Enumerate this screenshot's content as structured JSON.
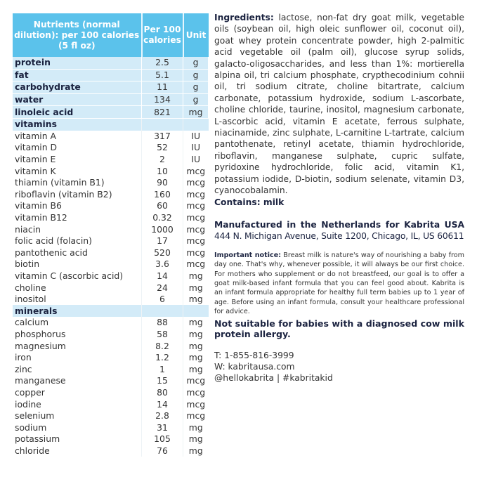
{
  "table": {
    "headers": [
      "Nutrients (normal dilution): per 100 calories (5 fl oz)",
      "Per 100 calories",
      "Unit"
    ],
    "rows": [
      {
        "type": "highlight",
        "name": "protein",
        "value": "2.5",
        "unit": "g"
      },
      {
        "type": "highlight",
        "name": "fat",
        "value": "5.1",
        "unit": "g"
      },
      {
        "type": "highlight",
        "name": "carbohydrate",
        "value": "11",
        "unit": "g"
      },
      {
        "type": "highlight",
        "name": "water",
        "value": "134",
        "unit": "g"
      },
      {
        "type": "highlight",
        "name": "linoleic acid",
        "value": "821",
        "unit": "mg"
      },
      {
        "type": "section",
        "name": "vitamins",
        "value": "",
        "unit": ""
      },
      {
        "type": "regular",
        "name": "vitamin A",
        "value": "317",
        "unit": "IU"
      },
      {
        "type": "regular",
        "name": "vitamin D",
        "value": "52",
        "unit": "IU"
      },
      {
        "type": "regular",
        "name": "vitamin E",
        "value": "2",
        "unit": "IU"
      },
      {
        "type": "regular",
        "name": "vitamin K",
        "value": "10",
        "unit": "mcg"
      },
      {
        "type": "regular",
        "name": "thiamin (vitamin B1)",
        "value": "90",
        "unit": "mcg"
      },
      {
        "type": "regular",
        "name": "riboflavin (vitamin B2)",
        "value": "160",
        "unit": "mcg"
      },
      {
        "type": "regular",
        "name": "vitamin B6",
        "value": "60",
        "unit": "mcg"
      },
      {
        "type": "regular",
        "name": "vitamin B12",
        "value": "0.32",
        "unit": "mcg"
      },
      {
        "type": "regular",
        "name": "niacin",
        "value": "1000",
        "unit": "mcg"
      },
      {
        "type": "regular",
        "name": "folic acid (folacin)",
        "value": "17",
        "unit": "mcg"
      },
      {
        "type": "regular",
        "name": "pantothenic acid",
        "value": "520",
        "unit": "mcg"
      },
      {
        "type": "regular",
        "name": "biotin",
        "value": "3.6",
        "unit": "mcg"
      },
      {
        "type": "regular",
        "name": "vitamin C (ascorbic acid)",
        "value": "14",
        "unit": "mg"
      },
      {
        "type": "regular",
        "name": "choline",
        "value": "24",
        "unit": "mg"
      },
      {
        "type": "regular",
        "name": "inositol",
        "value": "6",
        "unit": "mg"
      },
      {
        "type": "section",
        "name": "minerals",
        "value": "",
        "unit": ""
      },
      {
        "type": "regular",
        "name": "calcium",
        "value": "88",
        "unit": "mg"
      },
      {
        "type": "regular",
        "name": "phosphorus",
        "value": "58",
        "unit": "mg"
      },
      {
        "type": "regular",
        "name": "magnesium",
        "value": "8.2",
        "unit": "mg"
      },
      {
        "type": "regular",
        "name": "iron",
        "value": "1.2",
        "unit": "mg"
      },
      {
        "type": "regular",
        "name": "zinc",
        "value": "1",
        "unit": "mg"
      },
      {
        "type": "regular",
        "name": "manganese",
        "value": "15",
        "unit": "mcg"
      },
      {
        "type": "regular",
        "name": "copper",
        "value": "80",
        "unit": "mcg"
      },
      {
        "type": "regular",
        "name": "iodine",
        "value": "14",
        "unit": "mcg"
      },
      {
        "type": "regular",
        "name": "selenium",
        "value": "2.8",
        "unit": "mcg"
      },
      {
        "type": "regular",
        "name": "sodium",
        "value": "31",
        "unit": "mg"
      },
      {
        "type": "regular",
        "name": "potassium",
        "value": "105",
        "unit": "mg"
      },
      {
        "type": "regular",
        "name": "chloride",
        "value": "76",
        "unit": "mg"
      }
    ]
  },
  "ingredients": {
    "label": "Ingredients:",
    "text": "lactose, non-fat dry goat milk, vegetable oils (soybean oil, high oleic sunflower oil, coconut oil), goat whey protein concentrate powder, high 2-palmitic acid vegetable oil (palm oil), glucose syrup solids, galacto-oligosaccharides, and less than 1%: mortierella alpina oil, tri calcium phosphate, crypthecodinium cohnii oil, tri sodium citrate, choline bitartrate, calcium carbonate, potassium hydroxide, sodium L-ascorbate, choline chloride, taurine, inositol, magnesium carbonate, L-ascorbic acid, vitamin E acetate, ferrous sulphate, niacinamide, zinc sulphate, L-carnitine L-tartrate, calcium pantothenate, retinyl acetate, thiamin hydrochloride, riboflavin, manganese sulphate, cupric sulfate, pyridoxine hydrochloride, folic acid, vitamin K1, potassium iodide, D-biotin, sodium selenate, vitamin D3, cyanocobalamin.",
    "contains": "Contains: milk"
  },
  "manufacturer": {
    "line": "Manufactured in the Netherlands for Kabrita USA",
    "address": "444 N. Michigan Avenue, Suite 1200, Chicago, IL, US 60611"
  },
  "notice": {
    "label": "Important notice:",
    "text": "Breast milk is nature's way of nourishing a baby from day one. That's why, whenever possible, it will always be our first choice. For mothers who supplement or do not breastfeed, our goal is to offer a goat milk-based infant formula that you can feel good about. Kabrita is an infant formula appropriate for healthy full term babies up to 1 year of age. Before using an infant formula, consult your healthcare professional for advice."
  },
  "warning": "Not suitable for babies with a diagnosed cow milk protein allergy.",
  "contact": {
    "phone": "T: 1-855-816-3999",
    "web": "W: kabritausa.com",
    "social": "@hellokabrita | #kabritakid"
  },
  "colors": {
    "header": "#5bc2eb",
    "highlight_row": "#d3ebf8",
    "text": "#1b2340"
  }
}
